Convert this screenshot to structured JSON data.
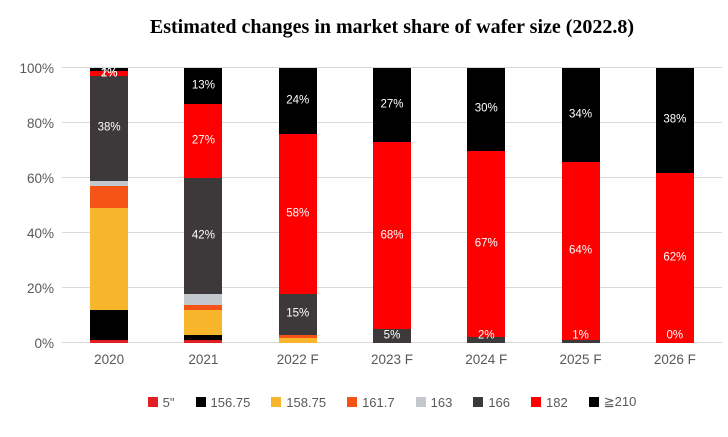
{
  "chart_data": {
    "type": "bar",
    "stacked": true,
    "percent": true,
    "title": "Estimated changes in market share of wafer size (2022.8)",
    "xlabel": "",
    "ylabel": "",
    "ylim": [
      0,
      100
    ],
    "grid": true,
    "legend_position": "bottom",
    "categories": [
      "2020",
      "2021",
      "2022 F",
      "2023 F",
      "2024 F",
      "2025 F",
      "2026 F"
    ],
    "series": [
      {
        "name": "5\"",
        "color": "#e02022",
        "values": [
          1,
          1,
          0,
          0,
          0,
          0,
          0
        ],
        "labels": [
          "",
          "",
          "",
          "",
          "",
          "",
          ""
        ]
      },
      {
        "name": "156.75",
        "color": "#000000",
        "values": [
          11,
          2,
          0,
          0,
          0,
          0,
          0
        ],
        "labels": [
          "",
          "",
          "",
          "",
          "",
          "",
          ""
        ]
      },
      {
        "name": "158.75",
        "color": "#f7b52c",
        "values": [
          37,
          9,
          2,
          0,
          0,
          0,
          0
        ],
        "labels": [
          "",
          "",
          "",
          "",
          "",
          "",
          ""
        ]
      },
      {
        "name": "161.7",
        "color": "#f55416",
        "values": [
          8,
          2,
          1,
          0,
          0,
          0,
          0
        ],
        "labels": [
          "",
          "",
          "",
          "",
          "",
          "",
          ""
        ]
      },
      {
        "name": "163",
        "color": "#c3c8ce",
        "values": [
          2,
          4,
          0,
          0,
          0,
          0,
          0
        ],
        "labels": [
          "",
          "",
          "",
          "",
          "",
          "",
          ""
        ]
      },
      {
        "name": "166",
        "color": "#3d393a",
        "values": [
          38,
          42,
          15,
          5,
          2,
          1,
          0
        ],
        "labels": [
          "38%",
          "42%",
          "15%",
          "5%",
          "2%",
          "1%",
          "0%"
        ]
      },
      {
        "name": "182",
        "color": "#fe0000",
        "values": [
          2,
          27,
          58,
          68,
          67,
          64,
          62
        ],
        "labels": [
          "2%",
          "27%",
          "58%",
          "68%",
          "67%",
          "64%",
          "62%"
        ]
      },
      {
        "name": "≧210",
        "color": "#000000",
        "values": [
          1,
          13,
          24,
          27,
          30,
          34,
          38
        ],
        "labels": [
          "1%",
          "13%",
          "24%",
          "27%",
          "30%",
          "34%",
          "38%"
        ]
      }
    ]
  },
  "y_axis": {
    "ticks": [
      "0%",
      "20%",
      "40%",
      "60%",
      "80%",
      "100%"
    ]
  }
}
